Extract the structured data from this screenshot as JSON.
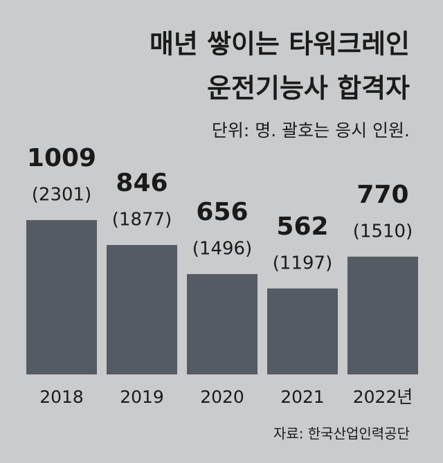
{
  "chart_data": {
    "type": "bar",
    "title": [
      "매년 쌓이는 타워크레인",
      "운전기능사 합격자"
    ],
    "subtitle": "단위: 명. 괄호는 응시 인원.",
    "categories": [
      "2018",
      "2019",
      "2020",
      "2021",
      "2022년"
    ],
    "values": [
      1009,
      846,
      656,
      562,
      770
    ],
    "applicant_labels": [
      "(2301)",
      "(1877)",
      "(1496)",
      "(1197)",
      "(1510)"
    ],
    "color": "#545b63",
    "source": "자료: 한국산업인력공단"
  }
}
